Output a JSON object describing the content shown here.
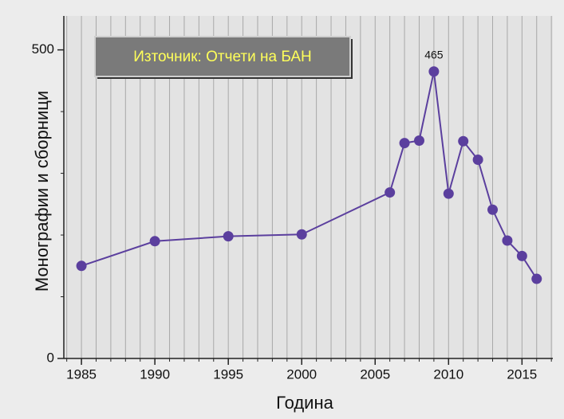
{
  "chart_data": {
    "type": "line",
    "x_label": "Година",
    "y_label": "Монографии и сборници",
    "source_box": "Източник: Отчети на БАН",
    "x": [
      1985,
      1990,
      1995,
      2000,
      2006,
      2007,
      2008,
      2009,
      2010,
      2011,
      2012,
      2013,
      2014,
      2015,
      2016
    ],
    "series": [
      {
        "name": "Монографии и сборници",
        "color": "#5b3f9e",
        "values": [
          150,
          190,
          198,
          201,
          269,
          349,
          353,
          465,
          267,
          352,
          322,
          241,
          191,
          166,
          129
        ]
      }
    ],
    "annotations": [
      {
        "text": "465",
        "x": 2009,
        "y": 465
      }
    ],
    "xlim": [
      1983.8,
      2017.1
    ],
    "xticks": [
      1985,
      1990,
      1995,
      2000,
      2005,
      2010,
      2015
    ],
    "minor_xticks": [
      1984,
      1985,
      1986,
      1987,
      1988,
      1989,
      1990,
      1991,
      1992,
      1993,
      1994,
      1995,
      1996,
      1997,
      1998,
      1999,
      2000,
      2001,
      2002,
      2003,
      2004,
      2005,
      2006,
      2007,
      2008,
      2009,
      2010,
      2011,
      2012,
      2013,
      2014,
      2015,
      2016,
      2017
    ],
    "ylim": [
      0,
      555
    ],
    "yticks": [
      0,
      500
    ],
    "minor_yticks": [
      100,
      200,
      300,
      400
    ],
    "grid": "x"
  }
}
